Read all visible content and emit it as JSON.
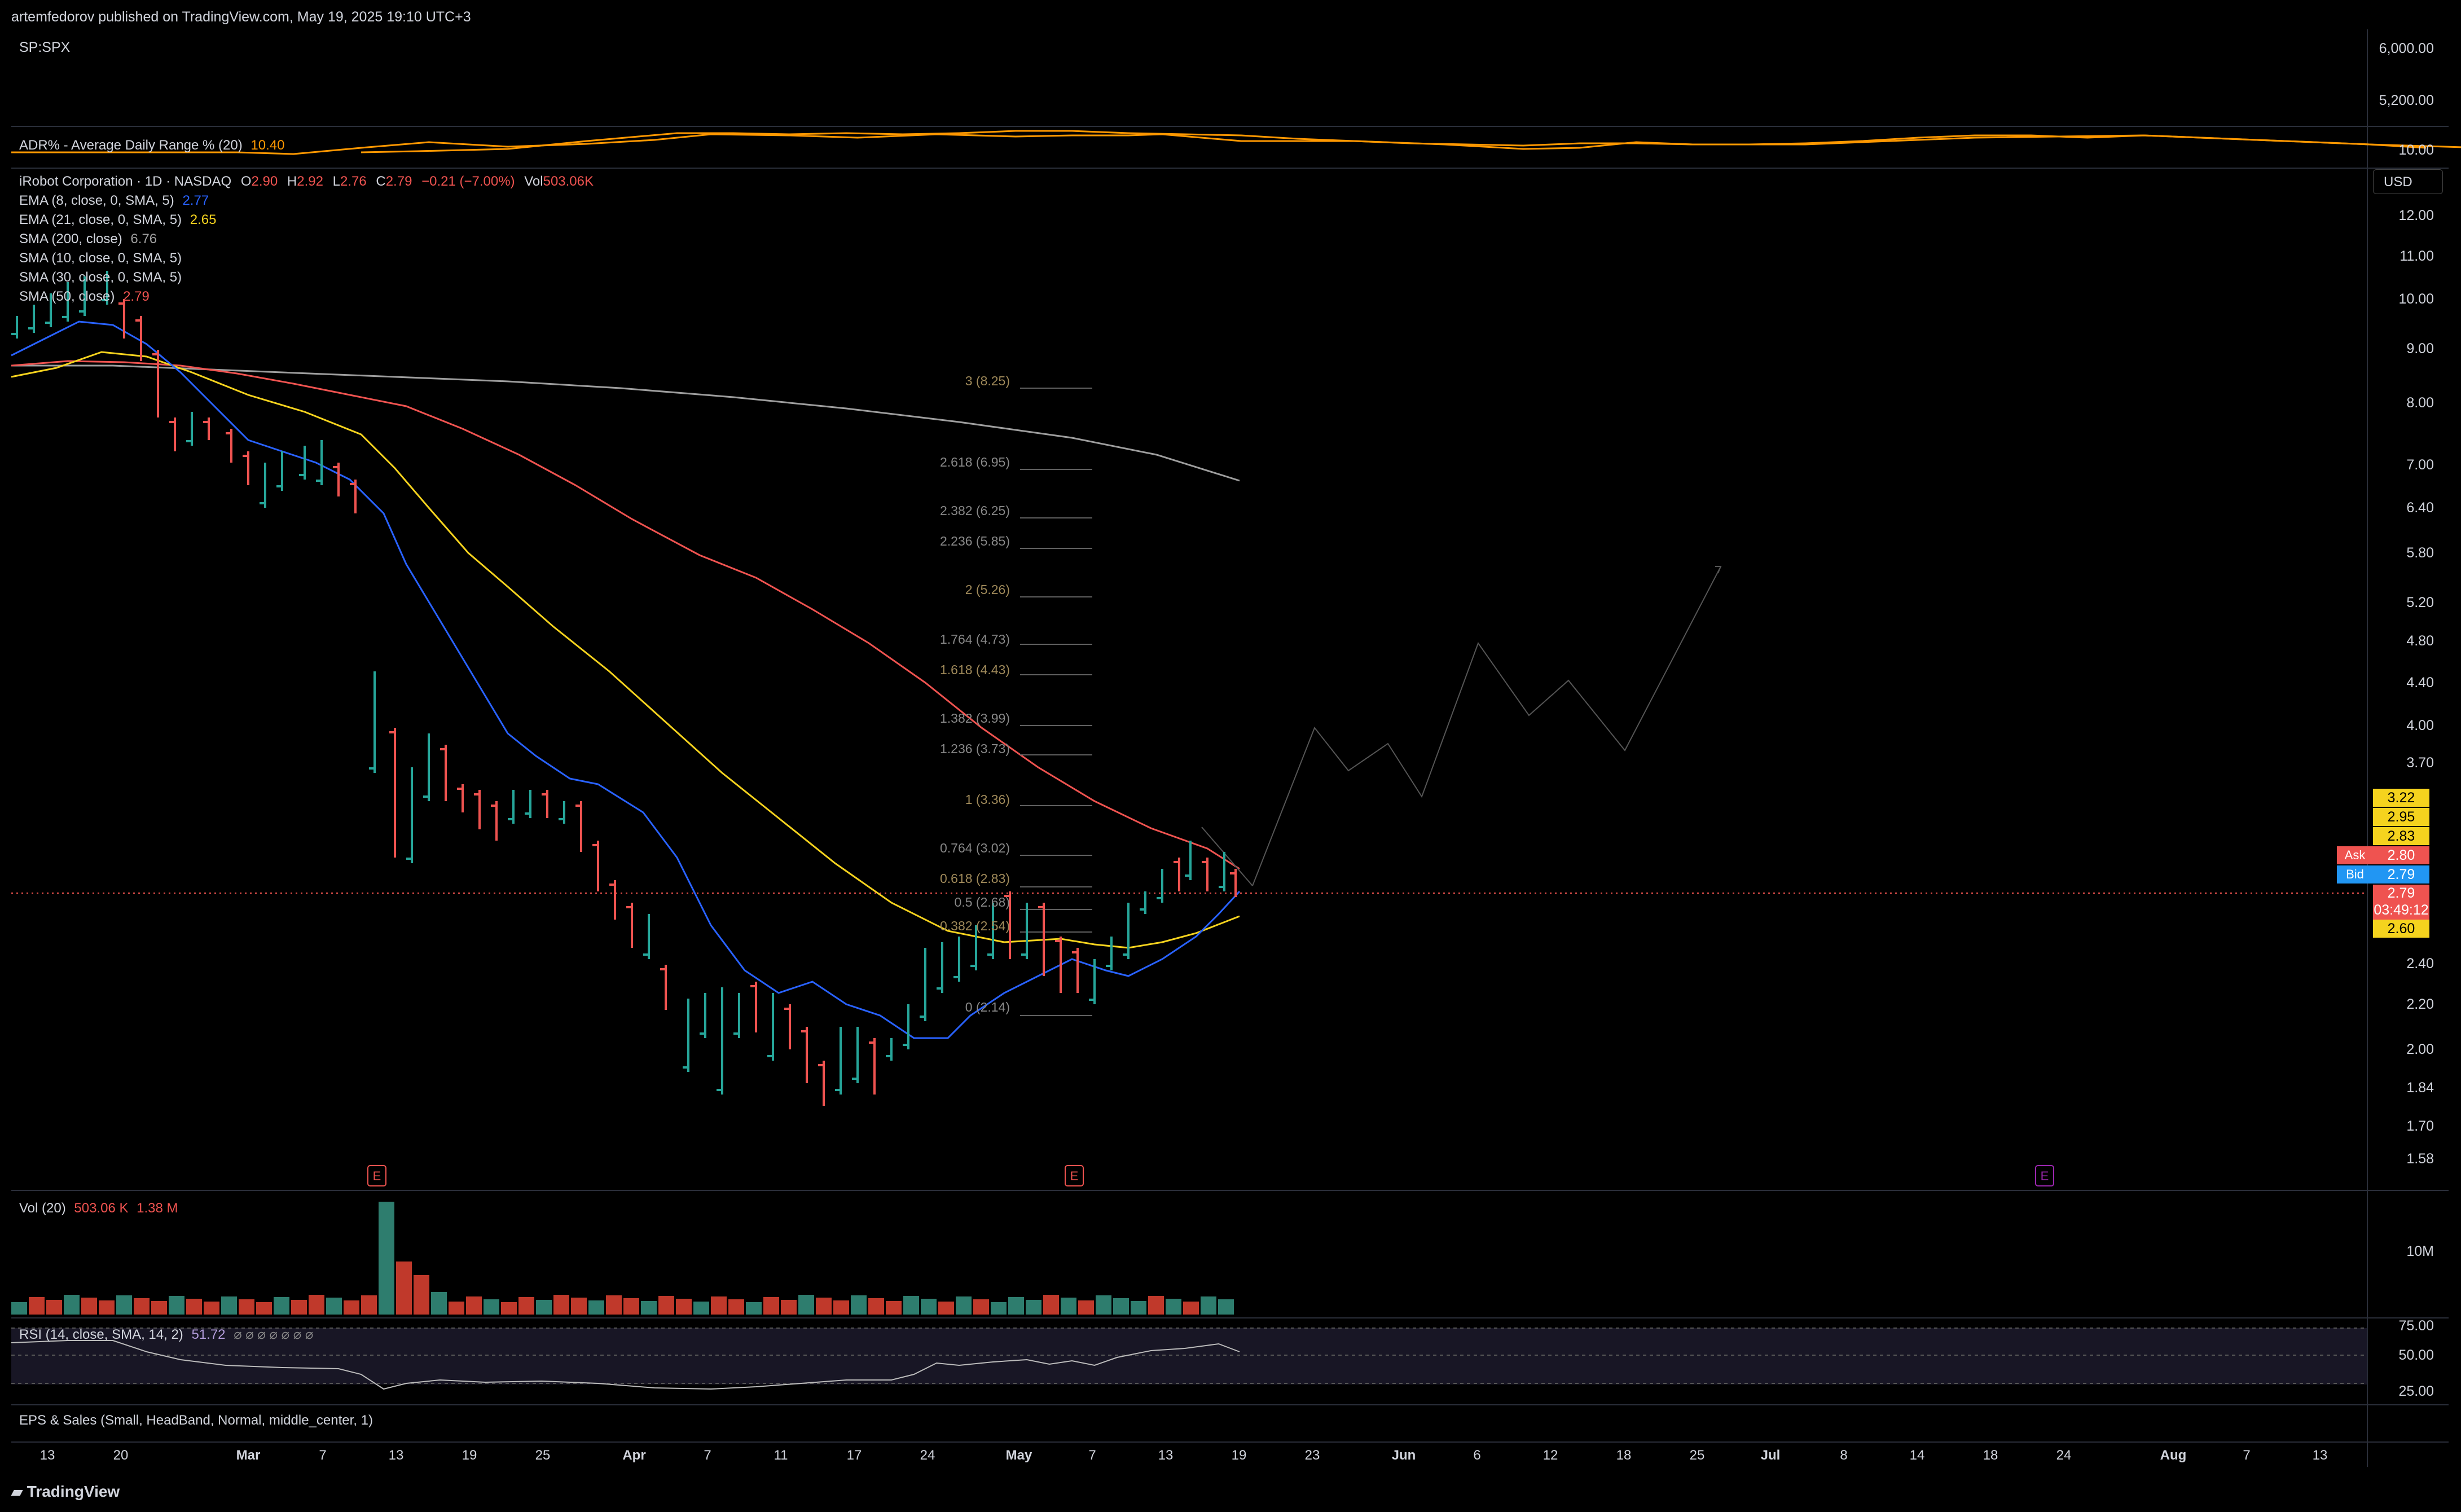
{
  "header": {
    "published": "artemfedorov published on TradingView.com, May 19, 2025 19:10 UTC+3"
  },
  "top_pane": {
    "symbol": "SP:SPX",
    "scale": [
      "6,000.00",
      "5,200.00"
    ]
  },
  "adr_pane": {
    "label": "ADR% - Average Daily Range % (20)",
    "value": "10.40",
    "scale": "10.00"
  },
  "main_legend": {
    "name": "iRobot Corporation · 1D · NASDAQ",
    "o_label": "O",
    "o": "2.90",
    "h_label": "H",
    "h": "2.92",
    "l_label": "L",
    "l": "2.76",
    "c_label": "C",
    "c": "2.79",
    "chg": "−0.21 (−7.00%)",
    "vol_label": "Vol",
    "vol": "503.06K",
    "indicators": [
      {
        "label": "EMA (8, close, 0, SMA, 5)",
        "value": "2.77",
        "color": "#2962ff"
      },
      {
        "label": "EMA (21, close, 0, SMA, 5)",
        "value": "2.65",
        "color": "#f5d31e"
      },
      {
        "label": "SMA (200, close)",
        "value": "6.76",
        "color": "#9e9e9e"
      },
      {
        "label": "SMA (10, close, 0, SMA, 5)",
        "value": "",
        "color": "#d1d4dc"
      },
      {
        "label": "SMA (30, close, 0, SMA, 5)",
        "value": "",
        "color": "#d1d4dc"
      },
      {
        "label": "SMA (50, close)",
        "value": "2.79",
        "color": "#ef5350"
      }
    ]
  },
  "price_axis": {
    "currency": "USD",
    "ticks": [
      "12.00",
      "11.00",
      "10.00",
      "9.00",
      "8.00",
      "7.00",
      "6.40",
      "5.80",
      "5.20",
      "4.80",
      "4.40",
      "4.00",
      "3.70",
      "2.40",
      "2.20",
      "2.00",
      "1.84",
      "1.70",
      "1.58"
    ],
    "labels": [
      {
        "text": "3.22",
        "bg": "#f5d31e",
        "fg": "#000000"
      },
      {
        "text": "2.95",
        "bg": "#f5d31e",
        "fg": "#000000"
      },
      {
        "text": "2.83",
        "bg": "#f5d31e",
        "fg": "#000000"
      },
      {
        "text": "2.80",
        "bg": "#ef5350",
        "fg": "#ffffff",
        "tag": "Ask"
      },
      {
        "text": "2.79",
        "bg": "#2196f3",
        "fg": "#ffffff",
        "tag": "Bid"
      },
      {
        "text": "2.79",
        "bg": "#ef5350",
        "fg": "#ffffff",
        "sub": "03:49:12"
      },
      {
        "text": "2.60",
        "bg": "#f5d31e",
        "fg": "#000000"
      }
    ]
  },
  "fib_levels": [
    {
      "label": "3 (8.25)"
    },
    {
      "label": "2.618 (6.95)"
    },
    {
      "label": "2.382 (6.25)"
    },
    {
      "label": "2.236 (5.85)"
    },
    {
      "label": "2 (5.26)"
    },
    {
      "label": "1.764 (4.73)"
    },
    {
      "label": "1.618 (4.43)"
    },
    {
      "label": "1.382 (3.99)"
    },
    {
      "label": "1.236 (3.73)"
    },
    {
      "label": "1 (3.36)"
    },
    {
      "label": "0.764 (3.02)"
    },
    {
      "label": "0.618 (2.83)"
    },
    {
      "label": "0.5 (2.68)"
    },
    {
      "label": "0.382 (2.54)"
    },
    {
      "label": "0 (2.14)"
    }
  ],
  "earnings_marker": "E",
  "volume_pane": {
    "label": "Vol (20)",
    "v1": "503.06 K",
    "v2": "1.38 M",
    "scale": "10M"
  },
  "rsi_pane": {
    "label": "RSI (14, close, SMA, 14, 2)",
    "value": "51.72",
    "extras": "⌀ ⌀ ⌀ ⌀ ⌀ ⌀ ⌀",
    "scale": [
      "75.00",
      "50.00",
      "25.00"
    ]
  },
  "eps_pane": {
    "label": "EPS & Sales (Small, HeadBand, Normal, middle_center, 1)"
  },
  "time_axis": [
    "13",
    "20",
    "Mar",
    "7",
    "13",
    "19",
    "25",
    "Apr",
    "7",
    "11",
    "17",
    "24",
    "May",
    "7",
    "13",
    "19",
    "23",
    "Jun",
    "6",
    "12",
    "18",
    "25",
    "Jul",
    "8",
    "14",
    "18",
    "24",
    "Aug",
    "7",
    "13"
  ],
  "footer": {
    "brand": "TradingView"
  },
  "colors": {
    "up": "#26a69a",
    "down": "#ef5350",
    "ema8": "#2962ff",
    "ema21": "#f5d31e",
    "sma50": "#ef5350",
    "sma200": "#9e9e9e",
    "adr": "#ff9800"
  }
}
